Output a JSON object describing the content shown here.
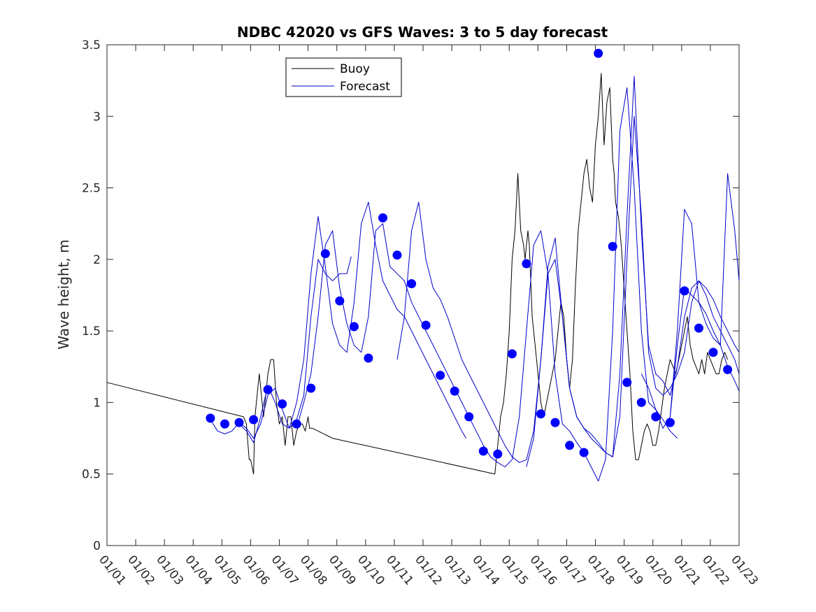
{
  "chart_data": {
    "type": "line",
    "title": "NDBC 42020 vs GFS Waves: 3 to 5 day forecast",
    "xlabel": "",
    "ylabel": "Wave height, m",
    "x_unit": "days since 01/01",
    "xlim": [
      0,
      22
    ],
    "ylim": [
      0,
      3.5
    ],
    "yticks": [
      0,
      0.5,
      1,
      1.5,
      2,
      2.5,
      3,
      3.5
    ],
    "ytick_labels": [
      "0",
      "0.5",
      "1",
      "1.5",
      "2",
      "2.5",
      "3",
      "3.5"
    ],
    "xtick_labels": [
      "01/01",
      "01/02",
      "01/03",
      "01/04",
      "01/05",
      "01/06",
      "01/07",
      "01/08",
      "01/09",
      "01/10",
      "01/11",
      "01/12",
      "01/13",
      "01/14",
      "01/15",
      "01/16",
      "01/17",
      "01/18",
      "01/19",
      "01/20",
      "01/21",
      "01/22",
      "01/23"
    ],
    "legend": {
      "position": "top-left",
      "entries": [
        "Buoy",
        "Forecast"
      ]
    },
    "colors": {
      "buoy": "#000000",
      "forecast": "#0000cc",
      "markers": "#0000ff",
      "axes": "#262626"
    },
    "series": [
      {
        "name": "Buoy",
        "color": "#000000",
        "x": [
          0,
          4.75,
          4.85,
          4.95,
          5.0,
          5.1,
          5.15,
          5.25,
          5.3,
          5.4,
          5.45,
          5.55,
          5.6,
          5.7,
          5.8,
          5.9,
          6.0,
          6.1,
          6.2,
          6.3,
          6.4,
          6.5,
          6.6,
          6.7,
          6.8,
          6.9,
          7.0,
          7.05,
          7.15,
          7.25,
          7.35,
          7.45,
          7.55,
          7.65,
          7.75,
          7.85,
          13.5,
          13.6,
          13.7,
          13.8,
          13.9,
          14.0,
          14.1,
          14.2,
          14.3,
          14.4,
          14.5,
          14.55,
          14.65,
          14.7,
          14.8,
          14.9,
          15.0,
          15.1,
          15.2,
          15.3,
          15.4,
          15.5,
          15.6,
          15.7,
          15.8,
          15.9,
          16.0,
          16.1,
          16.2,
          16.3,
          16.4,
          16.5,
          16.6,
          16.7,
          16.8,
          16.9,
          17.0,
          17.1,
          17.2,
          17.3,
          17.4,
          17.5,
          17.6,
          17.65,
          17.7,
          17.8,
          17.9,
          18.0,
          18.1,
          18.2,
          18.3,
          18.4,
          18.5,
          18.6,
          18.7,
          18.8,
          18.9,
          19.0,
          19.1,
          19.2,
          19.3,
          19.4,
          19.5,
          19.6,
          19.7,
          19.8,
          19.9,
          20.0,
          20.1,
          20.2,
          20.3,
          20.4,
          20.5,
          20.6,
          20.7,
          20.8,
          20.9,
          21.0,
          21.1,
          21.2,
          21.3,
          21.4,
          21.5,
          21.6
        ],
        "values": [
          1.14,
          0.9,
          0.85,
          0.6,
          0.6,
          0.5,
          0.9,
          1.1,
          1.2,
          1.0,
          0.9,
          1.1,
          1.2,
          1.3,
          1.3,
          1.0,
          0.85,
          0.9,
          0.7,
          0.9,
          0.9,
          0.7,
          0.8,
          0.85,
          0.85,
          0.8,
          0.9,
          0.82,
          0.82,
          0.81,
          0.8,
          0.79,
          0.78,
          0.77,
          0.76,
          0.75,
          0.5,
          0.7,
          0.9,
          1.0,
          1.2,
          1.5,
          2.0,
          2.2,
          2.6,
          2.2,
          2.1,
          2.0,
          2.2,
          2.1,
          1.6,
          1.4,
          1.2,
          1.0,
          0.9,
          1.0,
          1.1,
          1.2,
          1.3,
          1.5,
          1.7,
          1.6,
          1.3,
          1.1,
          1.3,
          1.8,
          2.2,
          2.4,
          2.6,
          2.7,
          2.5,
          2.4,
          2.8,
          3.0,
          3.3,
          2.8,
          3.1,
          3.2,
          2.7,
          2.6,
          2.4,
          2.3,
          2.1,
          1.8,
          1.5,
          1.2,
          0.8,
          0.6,
          0.6,
          0.7,
          0.8,
          0.85,
          0.8,
          0.7,
          0.7,
          0.8,
          0.95,
          1.1,
          1.2,
          1.3,
          1.25,
          1.2,
          1.3,
          1.4,
          1.5,
          1.6,
          1.4,
          1.3,
          1.25,
          1.2,
          1.3,
          1.2,
          1.35,
          1.3,
          1.25,
          1.2,
          1.2,
          1.3,
          1.35,
          1.3
        ]
      },
      {
        "name": "Forecast 1",
        "color": "#0000cc",
        "x": [
          3.6,
          3.85,
          4.1,
          4.35,
          4.6,
          4.85,
          5.1,
          5.35,
          5.6,
          5.85,
          6.1,
          6.35,
          6.6,
          6.85,
          7.1,
          7.35,
          7.6,
          7.85,
          8.1,
          8.35,
          8.5
        ],
        "values": [
          0.88,
          0.8,
          0.78,
          0.8,
          0.86,
          0.82,
          0.75,
          0.85,
          1.05,
          1.1,
          0.95,
          0.82,
          0.88,
          1.05,
          1.6,
          2.0,
          1.9,
          1.85,
          1.9,
          1.9,
          2.02
        ]
      },
      {
        "name": "Forecast 2",
        "color": "#0000cc",
        "x": [
          4.6,
          4.85,
          5.1,
          5.35,
          5.6,
          5.85,
          6.1,
          6.35,
          6.6,
          6.85,
          7.1,
          7.35,
          7.6,
          7.85,
          8.1,
          8.35,
          8.6,
          8.85,
          9.1,
          9.35,
          9.6,
          9.85,
          10.1,
          10.35,
          10.6,
          10.85,
          11.1,
          11.35,
          11.6,
          11.85,
          12.1,
          12.35,
          12.5
        ],
        "values": [
          0.85,
          0.8,
          0.72,
          0.9,
          1.12,
          1.0,
          0.85,
          0.82,
          1.0,
          1.3,
          1.9,
          2.3,
          1.95,
          1.55,
          1.4,
          1.35,
          1.7,
          2.25,
          2.4,
          2.1,
          1.85,
          1.75,
          1.65,
          1.6,
          1.5,
          1.4,
          1.3,
          1.2,
          1.1,
          1.0,
          0.9,
          0.8,
          0.75
        ]
      },
      {
        "name": "Forecast 3",
        "color": "#0000cc",
        "x": [
          6.6,
          6.85,
          7.1,
          7.35,
          7.6,
          7.85,
          8.1,
          8.35,
          8.6,
          8.85,
          9.1,
          9.35,
          9.6,
          9.85,
          10.1,
          10.35,
          10.6,
          10.85,
          11.1,
          11.35,
          11.6,
          11.85,
          12.1,
          12.35,
          12.6,
          12.85,
          13.1,
          13.35,
          13.6,
          13.85,
          14.1,
          14.35,
          14.6,
          14.85,
          15.1,
          15.35,
          15.6,
          15.85,
          16.1,
          16.35,
          16.6,
          16.85,
          17.1,
          17.35,
          17.6,
          17.85,
          18.1,
          18.35,
          18.6,
          18.85,
          19.1,
          19.35,
          19.6,
          19.85
        ],
        "values": [
          0.82,
          1.0,
          1.2,
          1.6,
          2.1,
          2.2,
          1.8,
          1.55,
          1.4,
          1.35,
          1.6,
          2.2,
          2.25,
          1.95,
          1.9,
          1.85,
          1.7,
          1.6,
          1.5,
          1.4,
          1.3,
          1.2,
          1.1,
          1.0,
          0.9,
          0.8,
          0.7,
          0.62,
          0.58,
          0.55,
          0.6,
          0.9,
          1.5,
          2.1,
          2.2,
          1.9,
          1.2,
          0.85,
          0.8,
          0.72,
          0.65,
          0.55,
          0.45,
          0.6,
          1.5,
          2.9,
          3.2,
          2.5,
          1.5,
          1.0,
          0.95,
          0.88,
          0.8,
          0.75
        ]
      },
      {
        "name": "Forecast 4",
        "color": "#0000cc",
        "x": [
          10.1,
          10.35,
          10.6,
          10.85,
          11.1,
          11.35,
          11.6,
          11.85,
          12.1,
          12.35,
          12.6,
          12.85,
          13.1,
          13.35,
          13.6,
          13.85,
          14.1,
          14.35,
          14.6,
          14.85,
          15.1,
          15.35,
          15.6,
          15.85,
          16.1,
          16.35,
          16.6,
          16.85,
          17.1,
          17.35,
          17.6,
          17.85,
          18.1,
          18.35,
          18.6,
          18.85,
          19.1,
          19.35,
          19.6,
          19.85,
          20.1,
          20.35,
          20.6,
          20.85,
          21.1,
          21.35,
          21.6,
          21.85,
          22.0
        ],
        "values": [
          1.3,
          1.6,
          2.2,
          2.4,
          2.0,
          1.8,
          1.72,
          1.6,
          1.45,
          1.3,
          1.2,
          1.1,
          1.0,
          0.9,
          0.8,
          0.7,
          0.62,
          0.58,
          0.6,
          0.8,
          1.3,
          1.9,
          2.0,
          1.6,
          1.1,
          0.9,
          0.82,
          0.78,
          0.72,
          0.65,
          0.62,
          0.9,
          2.0,
          3.0,
          2.3,
          1.35,
          1.1,
          1.05,
          1.1,
          1.2,
          1.35,
          1.7,
          1.85,
          1.8,
          1.72,
          1.6,
          1.5,
          1.4,
          1.35
        ]
      },
      {
        "name": "Forecast 5",
        "color": "#0000cc",
        "x": [
          14.6,
          14.85,
          15.1,
          15.35,
          15.6,
          15.85,
          16.1,
          16.35,
          16.6,
          16.85,
          17.1,
          17.35,
          17.6,
          17.85,
          18.1,
          18.35,
          18.6,
          18.85,
          19.1,
          19.35,
          19.6,
          19.85,
          20.1,
          20.35,
          20.6,
          20.85,
          21.1,
          21.35,
          21.6,
          21.85,
          22.0
        ],
        "values": [
          0.55,
          0.75,
          1.3,
          1.95,
          2.15,
          1.6,
          1.1,
          0.9,
          0.82,
          0.75,
          0.7,
          0.65,
          0.62,
          1.2,
          2.3,
          3.28,
          2.2,
          1.4,
          1.2,
          1.15,
          1.05,
          1.25,
          1.6,
          1.8,
          1.85,
          1.75,
          1.6,
          1.5,
          1.4,
          1.3,
          1.2
        ]
      },
      {
        "name": "Forecast 6",
        "color": "#0000cc",
        "x": [
          18.6,
          18.85,
          19.1,
          19.35,
          19.6,
          19.85,
          20.1,
          20.35,
          20.6,
          20.85,
          21.1,
          21.35,
          21.6,
          21.85,
          22.0
        ],
        "values": [
          1.2,
          1.1,
          0.95,
          0.82,
          0.9,
          1.5,
          2.35,
          2.25,
          1.7,
          1.55,
          1.45,
          1.4,
          2.6,
          2.2,
          1.85
        ]
      },
      {
        "name": "Forecast 7",
        "color": "#0000cc",
        "x": [
          19.6,
          19.85,
          20.1,
          20.35,
          20.6,
          20.85,
          21.1,
          21.35,
          21.6,
          21.85,
          22.0
        ],
        "values": [
          0.9,
          1.4,
          1.8,
          1.75,
          1.7,
          1.62,
          1.5,
          1.4,
          1.25,
          1.15,
          1.08
        ]
      }
    ],
    "markers": {
      "name": "Forecast points",
      "color": "#0000ff",
      "x": [
        3.6,
        4.1,
        4.6,
        5.1,
        5.6,
        6.1,
        6.6,
        7.1,
        7.6,
        8.1,
        8.6,
        9.1,
        9.6,
        10.1,
        10.6,
        11.1,
        11.6,
        12.1,
        12.6,
        13.1,
        13.6,
        14.1,
        14.6,
        15.1,
        15.6,
        16.1,
        16.6,
        17.1,
        17.6,
        18.1,
        18.6,
        19.1,
        19.6,
        20.1,
        20.6,
        21.1,
        21.6
      ],
      "values": [
        0.89,
        0.85,
        0.86,
        0.88,
        1.09,
        0.99,
        0.85,
        1.1,
        2.04,
        1.71,
        1.53,
        1.31,
        2.29,
        2.03,
        1.83,
        1.54,
        1.19,
        1.08,
        0.9,
        0.66,
        0.64,
        1.34,
        1.97,
        0.92,
        0.86,
        0.7,
        0.65,
        3.44,
        2.09,
        1.14,
        1.0,
        0.9,
        0.86,
        1.78,
        1.52,
        1.35,
        1.23
      ]
    }
  }
}
